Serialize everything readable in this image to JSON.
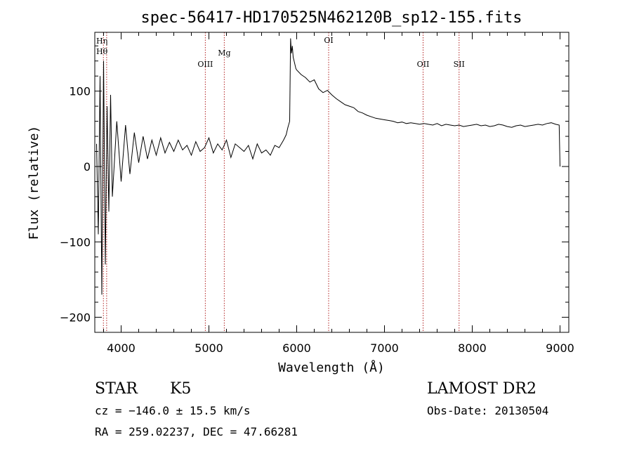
{
  "chart_data": {
    "type": "line",
    "title": "spec-56417-HD170525N462120B_sp12-155.fits",
    "xlabel": "Wavelength (Å)",
    "ylabel": "Flux (relative)",
    "xlim": [
      3700,
      9100
    ],
    "ylim": [
      -220,
      178
    ],
    "xticks": [
      4000,
      5000,
      6000,
      7000,
      8000,
      9000
    ],
    "yticks": [
      -200,
      -100,
      0,
      100
    ],
    "ytick_labels": [
      "−200",
      "−100",
      "0",
      "100"
    ],
    "grid": false,
    "series": [
      {
        "x": [
          3720,
          3740,
          3760,
          3780,
          3800,
          3820,
          3840,
          3860,
          3880,
          3900,
          3950,
          4000,
          4050,
          4100,
          4150,
          4200,
          4250,
          4300,
          4350,
          4400,
          4450,
          4500,
          4550,
          4600,
          4650,
          4700,
          4750,
          4800,
          4850,
          4900,
          4950,
          5000,
          5050,
          5100,
          5150,
          5200,
          5250,
          5300,
          5350,
          5400,
          5450,
          5500,
          5550,
          5600,
          5650,
          5700,
          5750,
          5800,
          5850,
          5880,
          5900,
          5920,
          5930,
          5940,
          5950,
          5960,
          5970,
          5990,
          6000,
          6050,
          6100,
          6150,
          6200,
          6250,
          6300,
          6350,
          6400,
          6450,
          6500,
          6550,
          6600,
          6650,
          6700,
          6750,
          6800,
          6850,
          6900,
          6950,
          7000,
          7050,
          7100,
          7150,
          7200,
          7250,
          7300,
          7350,
          7400,
          7450,
          7500,
          7550,
          7600,
          7650,
          7700,
          7750,
          7800,
          7850,
          7900,
          7950,
          8000,
          8050,
          8100,
          8150,
          8200,
          8250,
          8300,
          8350,
          8400,
          8450,
          8500,
          8550,
          8600,
          8650,
          8700,
          8750,
          8800,
          8850,
          8900,
          8950,
          8990,
          9000
        ],
        "y": [
          30,
          -90,
          120,
          -170,
          140,
          -130,
          80,
          -60,
          95,
          -40,
          60,
          -20,
          55,
          -10,
          45,
          5,
          40,
          10,
          35,
          15,
          38,
          18,
          32,
          20,
          35,
          22,
          28,
          15,
          33,
          20,
          25,
          38,
          18,
          30,
          22,
          35,
          12,
          30,
          25,
          20,
          28,
          10,
          30,
          18,
          22,
          15,
          28,
          25,
          35,
          42,
          52,
          60,
          170,
          150,
          160,
          145,
          140,
          130,
          128,
          122,
          118,
          112,
          115,
          103,
          98,
          101,
          95,
          90,
          86,
          82,
          80,
          78,
          73,
          71,
          68,
          66,
          64,
          63,
          62,
          61,
          60,
          58,
          59,
          57,
          58,
          57,
          56,
          57,
          56,
          55,
          57,
          54,
          56,
          55,
          54,
          55,
          53,
          54,
          55,
          56,
          54,
          55,
          53,
          54,
          56,
          55,
          53,
          52,
          54,
          55,
          53,
          54,
          55,
          56,
          55,
          57,
          58,
          56,
          55,
          0
        ]
      }
    ],
    "lines": [
      {
        "label": "Hη",
        "x": 3835
      },
      {
        "label": "Hθ",
        "x": 3798
      },
      {
        "label": "OIII",
        "x": 4959
      },
      {
        "label": "Mg",
        "x": 5175
      },
      {
        "label": "OI",
        "x": 6364
      },
      {
        "label": "OII",
        "x": 7440
      },
      {
        "label": "SII",
        "x": 7850
      }
    ]
  },
  "info": {
    "object_type": "STAR",
    "subclass": "K5",
    "survey": "LAMOST DR2",
    "cz": "cz = −146.0 ± 15.5 km/s",
    "obs_date": "Obs-Date: 20130504",
    "coords": "RA = 259.02237, DEC =  47.66281"
  },
  "colors": {
    "line": "#000000",
    "marker_lines": "#b22222",
    "text": "#000000",
    "background": "#ffffff"
  }
}
